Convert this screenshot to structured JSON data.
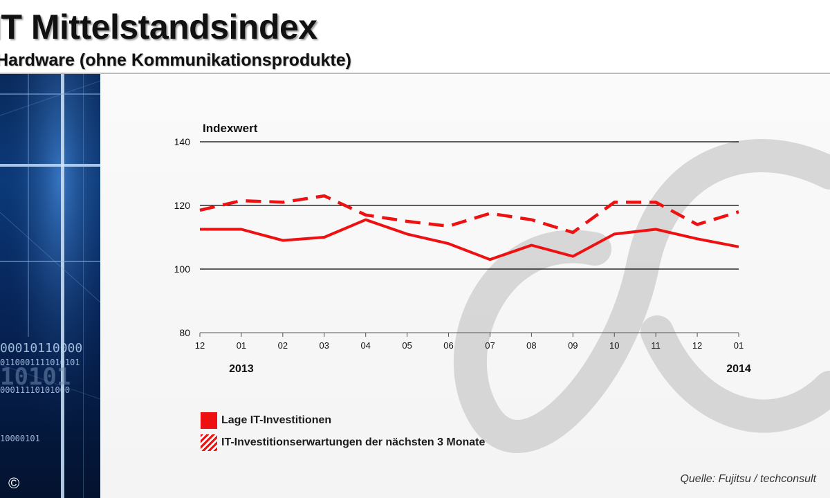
{
  "header": {
    "title": "IT Mittelstandsindex",
    "subtitle": "Hardware (ohne Kommunikationsprodukte)"
  },
  "side_panel": {
    "binary_lines": [
      "00010110000",
      "0110001111010101",
      "10101",
      "00011110101000",
      "10000101"
    ],
    "copyright": "©"
  },
  "chart_data": {
    "type": "line",
    "ylabel": "Indexwert",
    "ylim": [
      80,
      140
    ],
    "yticks": [
      80,
      100,
      120,
      140
    ],
    "gridlines": [
      100,
      120,
      140
    ],
    "categories": [
      "12",
      "01",
      "02",
      "03",
      "04",
      "05",
      "06",
      "07",
      "08",
      "09",
      "10",
      "11",
      "12",
      "01"
    ],
    "year_labels": [
      {
        "label": "2013",
        "category_index": 1
      },
      {
        "label": "2014",
        "category_index": 13
      }
    ],
    "series": [
      {
        "name": "Lage IT-Investitionen",
        "style": "solid",
        "color": "#ee1111",
        "values": [
          112.5,
          112.5,
          109,
          110,
          115.5,
          111,
          108,
          103,
          107.5,
          104,
          111,
          112.5,
          109.5,
          107
        ]
      },
      {
        "name": "IT-Investitionserwartungen der nächsten 3 Monate",
        "style": "dashed",
        "color": "#ee1111",
        "values": [
          118.5,
          121.5,
          121,
          123,
          117,
          115,
          113.5,
          117.5,
          115.5,
          111.5,
          121,
          121,
          114,
          118
        ]
      }
    ],
    "legend_position": "bottom-left",
    "grid": true
  },
  "source": "Quelle: Fujitsu / techconsult",
  "colors": {
    "series": "#ee1111",
    "panel": "#0b3a7a",
    "watermark": "#cfcfcf"
  }
}
